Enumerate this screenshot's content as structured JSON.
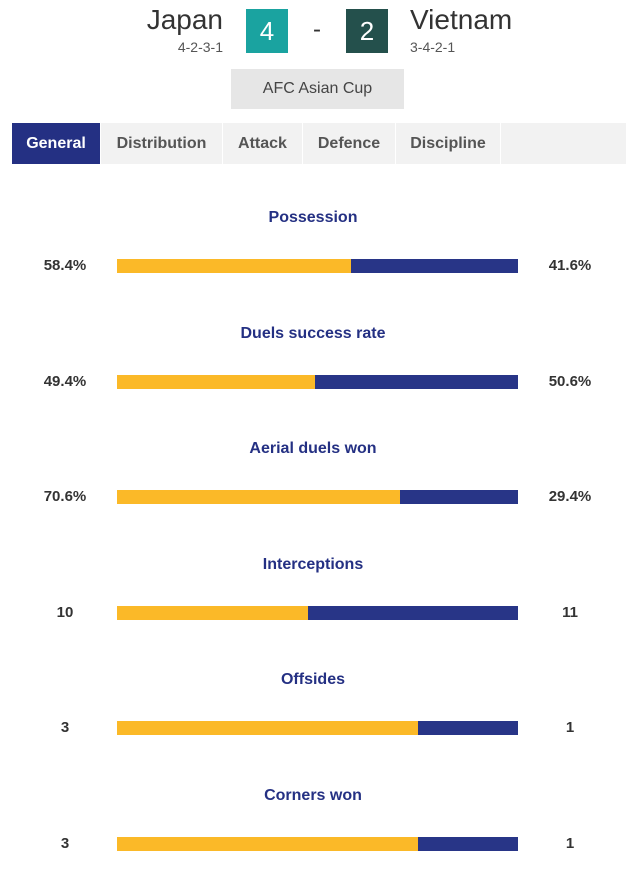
{
  "header": {
    "home_team": "Japan",
    "home_formation": "4-2-3-1",
    "home_score": "4",
    "separator": "-",
    "away_score": "2",
    "away_team": "Vietnam",
    "away_formation": "3-4-2-1",
    "competition": "AFC Asian Cup"
  },
  "tabs": [
    {
      "label": "General",
      "active": true
    },
    {
      "label": "Distribution",
      "active": false
    },
    {
      "label": "Attack",
      "active": false
    },
    {
      "label": "Defence",
      "active": false
    },
    {
      "label": "Discipline",
      "active": false
    }
  ],
  "colors": {
    "home_bar": "#fbb928",
    "away_bar": "#283587",
    "active_tab": "#243083",
    "home_score_bg": "#1aa3a0",
    "away_score_bg": "#24504c"
  },
  "stats": [
    {
      "title": "Possession",
      "home": "58.4%",
      "away": "41.6%",
      "home_share": 0.584
    },
    {
      "title": "Duels success rate",
      "home": "49.4%",
      "away": "50.6%",
      "home_share": 0.494
    },
    {
      "title": "Aerial duels won",
      "home": "70.6%",
      "away": "29.4%",
      "home_share": 0.706
    },
    {
      "title": "Interceptions",
      "home": "10",
      "away": "11",
      "home_share": 0.476
    },
    {
      "title": "Offsides",
      "home": "3",
      "away": "1",
      "home_share": 0.75
    },
    {
      "title": "Corners won",
      "home": "3",
      "away": "1",
      "home_share": 0.75
    }
  ]
}
